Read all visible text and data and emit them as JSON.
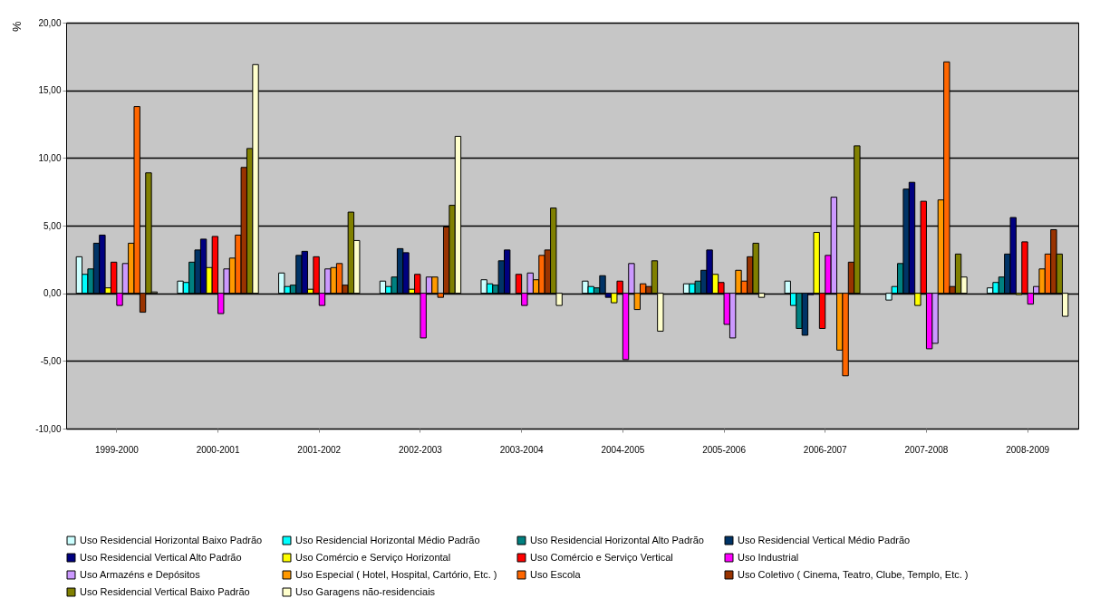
{
  "chart_data": {
    "type": "bar",
    "ylabel": "%",
    "categories": [
      "1999-2000",
      "2000-2001",
      "2001-2002",
      "2002-2003",
      "2003-2004",
      "2004-2005",
      "2005-2006",
      "2006-2007",
      "2007-2008",
      "2008-2009"
    ],
    "ylim": [
      -10,
      20
    ],
    "yticks": [
      {
        "value": -10,
        "label": "-10,00"
      },
      {
        "value": -5,
        "label": "-5,00"
      },
      {
        "value": 0,
        "label": "0,00"
      },
      {
        "value": 5,
        "label": "5,00"
      },
      {
        "value": 10,
        "label": "10,00"
      },
      {
        "value": 15,
        "label": "15,00"
      },
      {
        "value": 20,
        "label": "20,00"
      }
    ],
    "grid": "y",
    "legend": "bottom",
    "series": [
      {
        "name": "Uso Residencial Horizontal Baixo Padrão",
        "color": "#ccffff",
        "values": [
          2.7,
          0.9,
          1.5,
          0.9,
          1.0,
          0.9,
          0.7,
          0.9,
          -0.5,
          0.4
        ]
      },
      {
        "name": "Uso Residencial Horizontal Médio Padrão",
        "color": "#00ffff",
        "values": [
          1.4,
          0.8,
          0.5,
          0.5,
          0.7,
          0.5,
          0.7,
          -0.9,
          0.5,
          0.8
        ]
      },
      {
        "name": "Uso Residencial Horizontal Alto Padrão",
        "color": "#008080",
        "values": [
          1.8,
          2.3,
          0.6,
          1.2,
          0.6,
          0.4,
          0.9,
          -2.6,
          2.2,
          1.2
        ]
      },
      {
        "name": "Uso Residencial Vertical Médio Padrão",
        "color": "#003366",
        "values": [
          3.7,
          3.2,
          2.8,
          3.3,
          2.4,
          1.3,
          1.7,
          -3.1,
          7.7,
          2.9
        ]
      },
      {
        "name": "Uso Residencial Vertical Alto Padrão",
        "color": "#000080",
        "values": [
          4.3,
          4.0,
          3.1,
          3.0,
          3.2,
          -0.3,
          3.2,
          -0.1,
          8.2,
          5.6
        ]
      },
      {
        "name": "Uso Comércio e Serviço Horizontal",
        "color": "#ffff00",
        "values": [
          0.4,
          1.9,
          0.3,
          0.3,
          null,
          -0.7,
          1.4,
          4.5,
          -0.9,
          -0.1
        ]
      },
      {
        "name": "Uso Comércio e Serviço Vertical",
        "color": "#ff0000",
        "values": [
          2.3,
          4.2,
          2.7,
          1.4,
          1.4,
          0.9,
          0.8,
          -2.6,
          6.8,
          3.8
        ]
      },
      {
        "name": "Uso Industrial",
        "color": "#ff00ff",
        "values": [
          -0.9,
          -1.5,
          -0.9,
          -3.3,
          -0.9,
          -4.9,
          -2.3,
          2.8,
          -4.1,
          -0.8
        ]
      },
      {
        "name": "Uso Armazéns e Depósitos",
        "color": "#cc99ff",
        "values": [
          2.2,
          1.8,
          1.8,
          1.2,
          1.5,
          2.2,
          -3.3,
          7.1,
          -3.7,
          0.5
        ]
      },
      {
        "name": "Uso Especial ( Hotel, Hospital, Cartório, Etc. )",
        "color": "#ff9900",
        "values": [
          3.7,
          2.6,
          1.9,
          1.2,
          1.0,
          -1.2,
          1.7,
          -4.2,
          6.9,
          1.8
        ]
      },
      {
        "name": "Uso Escola",
        "color": "#ff6600",
        "values": [
          13.8,
          4.3,
          2.2,
          -0.3,
          2.8,
          0.7,
          0.9,
          -6.1,
          17.1,
          2.9
        ]
      },
      {
        "name": "Uso Coletivo ( Cinema, Teatro, Clube, Templo, Etc. )",
        "color": "#993300",
        "values": [
          -1.4,
          9.3,
          0.6,
          4.9,
          3.2,
          0.5,
          2.7,
          2.3,
          0.5,
          4.7
        ]
      },
      {
        "name": "Uso Residencial Vertical Baixo Padrão",
        "color": "#808000",
        "values": [
          8.9,
          10.7,
          6.0,
          6.5,
          6.3,
          2.4,
          3.7,
          10.9,
          2.9,
          2.9
        ]
      },
      {
        "name": "Uso Garagens não-residenciais",
        "color": "#ffffcc",
        "values": [
          0.1,
          16.9,
          3.9,
          11.6,
          -0.9,
          -2.8,
          -0.3,
          null,
          1.2,
          -1.7
        ]
      }
    ]
  }
}
